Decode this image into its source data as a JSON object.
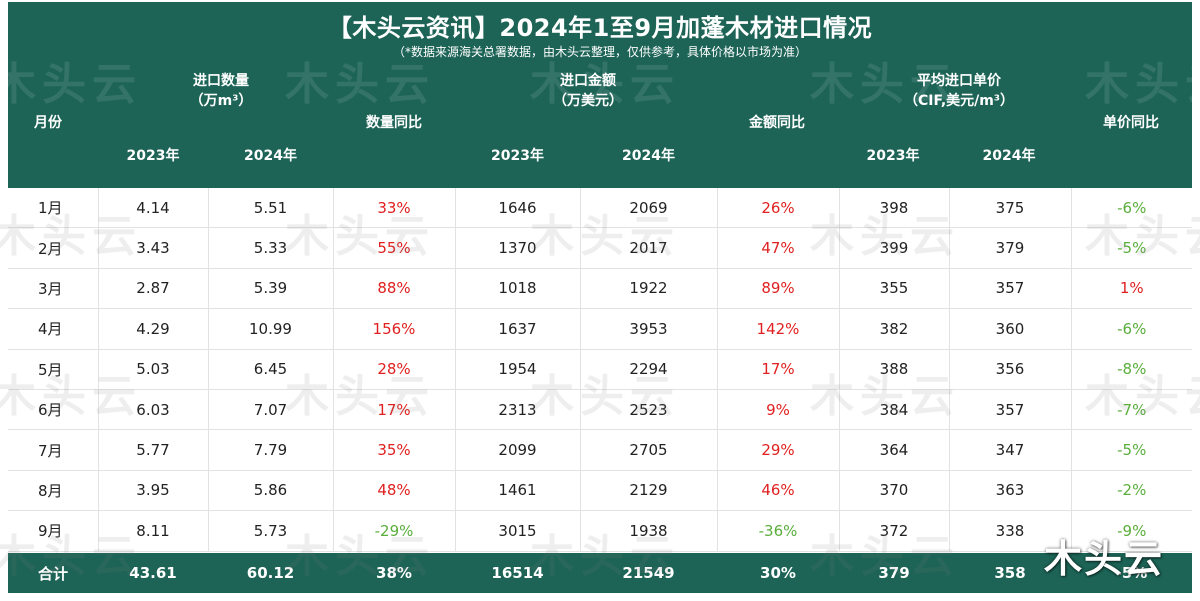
{
  "title": "【木头云资讯】2024年1至9月加蓬木材进口情况",
  "subtitle": "（*数据来源海关总署数据，由木头云整理，仅供参考，具体价格以市场为准）",
  "headers": {
    "month": "月份",
    "qty_group_line1": "进口数量",
    "qty_group_line2": "（万m³）",
    "qty_yoy": "数量同比",
    "amt_group_line1": "进口金额",
    "amt_group_line2": "（万美元）",
    "amt_yoy": "金额同比",
    "price_group_line1": "平均进口单价",
    "price_group_line2": "（CIF,美元/m³）",
    "price_yoy": "单价同比",
    "year_2023": "2023年",
    "year_2024": "2024年"
  },
  "rows": [
    {
      "month": "1月",
      "q23": "4.14",
      "q24": "5.51",
      "qyoy": "33%",
      "a23": "1646",
      "a24": "2069",
      "ayoy": "26%",
      "p23": "398",
      "p24": "375",
      "pyoy": "-6%"
    },
    {
      "month": "2月",
      "q23": "3.43",
      "q24": "5.33",
      "qyoy": "55%",
      "a23": "1370",
      "a24": "2017",
      "ayoy": "47%",
      "p23": "399",
      "p24": "379",
      "pyoy": "-5%"
    },
    {
      "month": "3月",
      "q23": "2.87",
      "q24": "5.39",
      "qyoy": "88%",
      "a23": "1018",
      "a24": "1922",
      "ayoy": "89%",
      "p23": "355",
      "p24": "357",
      "pyoy": "1%"
    },
    {
      "month": "4月",
      "q23": "4.29",
      "q24": "10.99",
      "qyoy": "156%",
      "a23": "1637",
      "a24": "3953",
      "ayoy": "142%",
      "p23": "382",
      "p24": "360",
      "pyoy": "-6%"
    },
    {
      "month": "5月",
      "q23": "5.03",
      "q24": "6.45",
      "qyoy": "28%",
      "a23": "1954",
      "a24": "2294",
      "ayoy": "17%",
      "p23": "388",
      "p24": "356",
      "pyoy": "-8%"
    },
    {
      "month": "6月",
      "q23": "6.03",
      "q24": "7.07",
      "qyoy": "17%",
      "a23": "2313",
      "a24": "2523",
      "ayoy": "9%",
      "p23": "384",
      "p24": "357",
      "pyoy": "-7%"
    },
    {
      "month": "7月",
      "q23": "5.77",
      "q24": "7.79",
      "qyoy": "35%",
      "a23": "2099",
      "a24": "2705",
      "ayoy": "29%",
      "p23": "364",
      "p24": "347",
      "pyoy": "-5%"
    },
    {
      "month": "8月",
      "q23": "3.95",
      "q24": "5.86",
      "qyoy": "48%",
      "a23": "1461",
      "a24": "2129",
      "ayoy": "46%",
      "p23": "370",
      "p24": "363",
      "pyoy": "-2%"
    },
    {
      "month": "9月",
      "q23": "8.11",
      "q24": "5.73",
      "qyoy": "-29%",
      "a23": "3015",
      "a24": "1938",
      "ayoy": "-36%",
      "p23": "372",
      "p24": "338",
      "pyoy": "-9%"
    }
  ],
  "total": {
    "month": "合计",
    "q23": "43.61",
    "q24": "60.12",
    "qyoy": "38%",
    "a23": "16514",
    "a24": "21549",
    "ayoy": "30%",
    "p23": "379",
    "p24": "358",
    "pyoy": "-5%"
  },
  "watermark_text": "木头云",
  "logo_text": "木头云",
  "colors": {
    "header_bg": "#1d6457",
    "positive": "#e02020",
    "negative": "#5aae3c"
  }
}
